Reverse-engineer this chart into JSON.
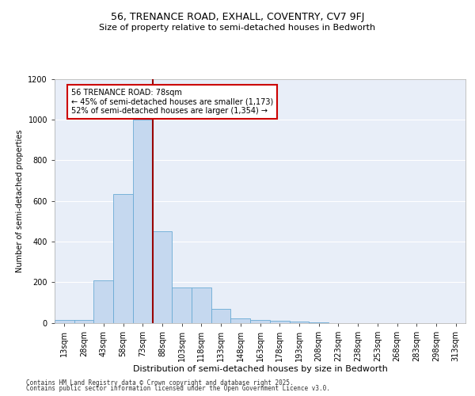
{
  "title_line1": "56, TRENANCE ROAD, EXHALL, COVENTRY, CV7 9FJ",
  "title_line2": "Size of property relative to semi-detached houses in Bedworth",
  "xlabel": "Distribution of semi-detached houses by size in Bedworth",
  "ylabel": "Number of semi-detached properties",
  "footnote1": "Contains HM Land Registry data © Crown copyright and database right 2025.",
  "footnote2": "Contains public sector information licensed under the Open Government Licence v3.0.",
  "annotation_title": "56 TRENANCE ROAD: 78sqm",
  "annotation_line2": "← 45% of semi-detached houses are smaller (1,173)",
  "annotation_line3": "52% of semi-detached houses are larger (1,354) →",
  "bar_color": "#c5d8ef",
  "bar_edge_color": "#6aaad4",
  "vline_color": "#990000",
  "background_color": "#e8eef8",
  "annotation_box_color": "#ffffff",
  "annotation_box_edge": "#cc0000",
  "categories": [
    "13sqm",
    "28sqm",
    "43sqm",
    "58sqm",
    "73sqm",
    "88sqm",
    "103sqm",
    "118sqm",
    "133sqm",
    "148sqm",
    "163sqm",
    "178sqm",
    "193sqm",
    "208sqm",
    "223sqm",
    "238sqm",
    "253sqm",
    "268sqm",
    "283sqm",
    "298sqm",
    "313sqm"
  ],
  "values": [
    15,
    15,
    210,
    635,
    1000,
    450,
    175,
    175,
    70,
    20,
    15,
    10,
    5,
    3,
    0,
    0,
    0,
    0,
    0,
    0,
    0
  ],
  "vline_position": 4.5,
  "ylim": [
    0,
    1200
  ],
  "yticks": [
    0,
    200,
    400,
    600,
    800,
    1000,
    1200
  ],
  "title1_fontsize": 9,
  "title2_fontsize": 8,
  "xlabel_fontsize": 8,
  "ylabel_fontsize": 7,
  "tick_fontsize": 7,
  "annot_fontsize": 7,
  "footnote_fontsize": 5.5
}
